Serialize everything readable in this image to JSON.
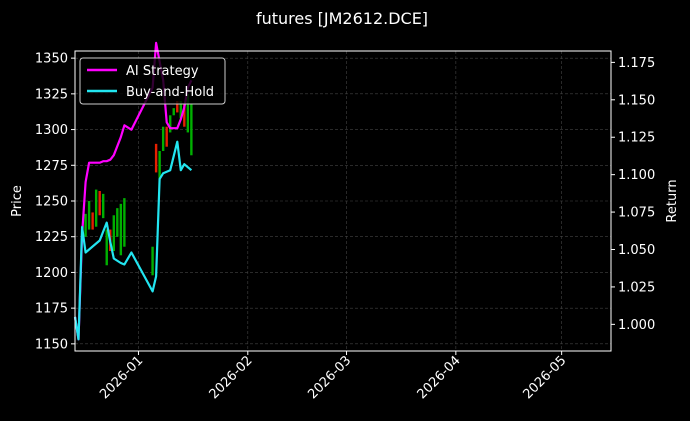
{
  "chart_data": {
    "type": "line",
    "title": "futures [JM2612.DCE]",
    "xlabel": "",
    "ylabel": "Price",
    "y2label": "Return",
    "xlim": [
      "2025-12-14",
      "2026-05-15"
    ],
    "ylim": [
      1145,
      1355
    ],
    "y2lim": [
      0.9822,
      1.1826
    ],
    "x_ticks": [
      "2026-01",
      "2026-02",
      "2026-03",
      "2026-04",
      "2026-05"
    ],
    "y_ticks": [
      1150,
      1175,
      1200,
      1225,
      1250,
      1275,
      1300,
      1325,
      1350
    ],
    "y2_ticks": [
      1.0,
      1.025,
      1.05,
      1.075,
      1.1,
      1.125,
      1.15,
      1.175
    ],
    "grid": true,
    "legend_position": "top-left",
    "colors": {
      "background": "#000000",
      "axes": "#ffffff",
      "grid": "#444444",
      "ai_strategy": "#ff00ff",
      "buy_and_hold": "#22e5f0",
      "candle_up": "#00b000",
      "candle_down": "#e62000"
    },
    "series": [
      {
        "name": "AI Strategy",
        "axis": "return",
        "x": [
          "2025-12-14",
          "2025-12-15",
          "2025-12-16",
          "2025-12-17",
          "2025-12-18",
          "2025-12-20",
          "2025-12-21",
          "2025-12-22",
          "2025-12-23",
          "2025-12-24",
          "2025-12-25",
          "2025-12-27",
          "2025-12-28",
          "2025-12-30",
          "2026-01-05",
          "2026-01-06",
          "2026-01-08",
          "2026-01-09",
          "2026-01-10",
          "2026-01-11",
          "2026-01-12",
          "2026-01-13",
          "2026-01-14",
          "2026-01-15",
          "2026-01-16"
        ],
        "values": [
          1.005,
          0.99,
          1.06,
          1.095,
          1.108,
          1.108,
          1.108,
          1.109,
          1.109,
          1.11,
          1.113,
          1.125,
          1.133,
          1.13,
          1.158,
          1.188,
          1.163,
          1.135,
          1.131,
          1.131,
          1.131,
          1.137,
          1.145,
          1.158,
          1.163
        ]
      },
      {
        "name": "Buy-and-Hold",
        "axis": "return",
        "x": [
          "2025-12-14",
          "2025-12-15",
          "2025-12-16",
          "2025-12-17",
          "2025-12-19",
          "2025-12-21",
          "2025-12-22",
          "2025-12-23",
          "2025-12-24",
          "2025-12-25",
          "2025-12-27",
          "2025-12-28",
          "2025-12-30",
          "2026-01-05",
          "2026-01-06",
          "2026-01-07",
          "2026-01-08",
          "2026-01-10",
          "2026-01-12",
          "2026-01-13",
          "2026-01-14",
          "2026-01-15",
          "2026-01-16"
        ],
        "values": [
          1.005,
          0.99,
          1.065,
          1.048,
          1.052,
          1.056,
          1.062,
          1.068,
          1.055,
          1.044,
          1.041,
          1.04,
          1.048,
          1.022,
          1.032,
          1.097,
          1.101,
          1.103,
          1.122,
          1.103,
          1.107,
          1.105,
          1.103
        ]
      }
    ],
    "candles": {
      "axis": "price",
      "data": [
        {
          "x": "2025-12-17",
          "open": 1225,
          "close": 1241
        },
        {
          "x": "2025-12-18",
          "open": 1230,
          "close": 1250
        },
        {
          "x": "2025-12-19",
          "open": 1242,
          "close": 1230
        },
        {
          "x": "2025-12-20",
          "open": 1232,
          "close": 1258
        },
        {
          "x": "2025-12-21",
          "open": 1257,
          "close": 1240
        },
        {
          "x": "2025-12-22",
          "open": 1238,
          "close": 1255
        },
        {
          "x": "2025-12-23",
          "open": 1205,
          "close": 1230
        },
        {
          "x": "2025-12-24",
          "open": 1230,
          "close": 1215
        },
        {
          "x": "2025-12-25",
          "open": 1215,
          "close": 1240
        },
        {
          "x": "2025-12-26",
          "open": 1225,
          "close": 1245
        },
        {
          "x": "2025-12-27",
          "open": 1212,
          "close": 1248
        },
        {
          "x": "2025-12-28",
          "open": 1218,
          "close": 1252
        },
        {
          "x": "2026-01-05",
          "open": 1198,
          "close": 1218
        },
        {
          "x": "2026-01-06",
          "open": 1290,
          "close": 1270
        },
        {
          "x": "2026-01-07",
          "open": 1265,
          "close": 1285
        },
        {
          "x": "2026-01-08",
          "open": 1285,
          "close": 1302
        },
        {
          "x": "2026-01-09",
          "open": 1302,
          "close": 1288
        },
        {
          "x": "2026-01-10",
          "open": 1298,
          "close": 1310
        },
        {
          "x": "2026-01-11",
          "open": 1310,
          "close": 1315
        },
        {
          "x": "2026-01-12",
          "open": 1320,
          "close": 1312
        },
        {
          "x": "2026-01-13",
          "open": 1308,
          "close": 1320
        },
        {
          "x": "2026-01-14",
          "open": 1318,
          "close": 1302
        },
        {
          "x": "2026-01-15",
          "open": 1298,
          "close": 1325
        },
        {
          "x": "2026-01-16",
          "open": 1282,
          "close": 1318
        }
      ]
    }
  }
}
